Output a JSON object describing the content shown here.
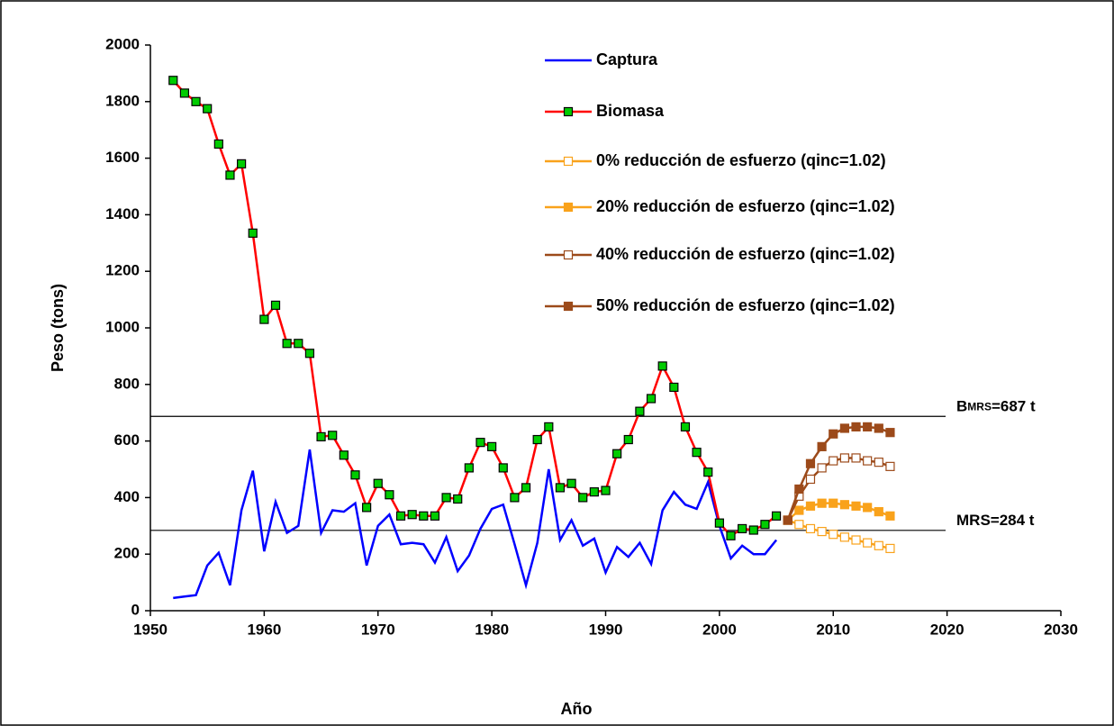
{
  "chart_data": {
    "type": "line",
    "xlabel": "Año",
    "ylabel": "Peso (tons)",
    "xlim": [
      1950,
      2030
    ],
    "xticks": [
      1950,
      1960,
      1970,
      1980,
      1990,
      2000,
      2010,
      2020,
      2030
    ],
    "ylim": [
      0,
      2000
    ],
    "yticks": [
      0,
      200,
      400,
      600,
      800,
      1000,
      1200,
      1400,
      1600,
      1800,
      2000
    ],
    "grid": false,
    "legend": "top-right",
    "series": [
      {
        "name": "Captura",
        "color": "#0000ff",
        "marker": "none",
        "marker_fill": "none",
        "x": [
          1952,
          1953,
          1954,
          1955,
          1956,
          1957,
          1958,
          1959,
          1960,
          1961,
          1962,
          1963,
          1964,
          1965,
          1966,
          1967,
          1968,
          1969,
          1970,
          1971,
          1972,
          1973,
          1974,
          1975,
          1976,
          1977,
          1978,
          1979,
          1980,
          1981,
          1982,
          1983,
          1984,
          1985,
          1986,
          1987,
          1988,
          1989,
          1990,
          1991,
          1992,
          1993,
          1994,
          1995,
          1996,
          1997,
          1998,
          1999,
          2000,
          2001,
          2002,
          2003,
          2004,
          2005
        ],
        "values": [
          45,
          50,
          55,
          160,
          205,
          90,
          355,
          495,
          210,
          385,
          275,
          300,
          570,
          275,
          355,
          350,
          380,
          160,
          300,
          340,
          235,
          240,
          235,
          170,
          260,
          140,
          195,
          290,
          360,
          375,
          235,
          90,
          240,
          500,
          250,
          320,
          230,
          255,
          135,
          225,
          190,
          240,
          165,
          355,
          420,
          375,
          360,
          455,
          300,
          185,
          230,
          200,
          200,
          250
        ]
      },
      {
        "name": "Biomasa",
        "color": "#ff0000",
        "marker": "square",
        "marker_fill": "#00cc00",
        "x": [
          1952,
          1953,
          1954,
          1955,
          1956,
          1957,
          1958,
          1959,
          1960,
          1961,
          1962,
          1963,
          1964,
          1965,
          1966,
          1967,
          1968,
          1969,
          1970,
          1971,
          1972,
          1973,
          1974,
          1975,
          1976,
          1977,
          1978,
          1979,
          1980,
          1981,
          1982,
          1983,
          1984,
          1985,
          1986,
          1987,
          1988,
          1989,
          1990,
          1991,
          1992,
          1993,
          1994,
          1995,
          1996,
          1997,
          1998,
          1999,
          2000,
          2001,
          2002,
          2003,
          2004,
          2005
        ],
        "values": [
          1875,
          1830,
          1800,
          1775,
          1650,
          1540,
          1580,
          1335,
          1030,
          1080,
          945,
          945,
          910,
          615,
          620,
          550,
          480,
          365,
          450,
          410,
          335,
          340,
          335,
          335,
          400,
          395,
          505,
          595,
          580,
          505,
          400,
          435,
          605,
          650,
          435,
          450,
          400,
          420,
          425,
          555,
          605,
          705,
          750,
          865,
          790,
          650,
          560,
          490,
          310,
          265,
          290,
          285,
          305,
          335
        ]
      },
      {
        "name": "0% reducción de esfuerzo (qinc=1.02)",
        "color": "#f9a21b",
        "marker": "square",
        "marker_fill": "#ffffff",
        "x": [
          2006,
          2007,
          2008,
          2009,
          2010,
          2011,
          2012,
          2013,
          2014,
          2015
        ],
        "values": [
          320,
          305,
          290,
          280,
          270,
          260,
          250,
          240,
          230,
          220
        ]
      },
      {
        "name": "20% reducción de esfuerzo (qinc=1.02)",
        "color": "#f9a21b",
        "marker": "square",
        "marker_fill": "#f9a21b",
        "x": [
          2006,
          2007,
          2008,
          2009,
          2010,
          2011,
          2012,
          2013,
          2014,
          2015
        ],
        "values": [
          320,
          355,
          370,
          380,
          380,
          375,
          370,
          365,
          350,
          335
        ]
      },
      {
        "name": "40% reducción de esfuerzo (qinc=1.02)",
        "color": "#9c4a1a",
        "marker": "square",
        "marker_fill": "#ffffff",
        "x": [
          2006,
          2007,
          2008,
          2009,
          2010,
          2011,
          2012,
          2013,
          2014,
          2015
        ],
        "values": [
          320,
          405,
          465,
          505,
          530,
          540,
          540,
          530,
          525,
          510
        ]
      },
      {
        "name": "50% reducción de esfuerzo (qinc=1.02)",
        "color": "#9c4a1a",
        "marker": "square",
        "marker_fill": "#9c4a1a",
        "x": [
          2006,
          2007,
          2008,
          2009,
          2010,
          2011,
          2012,
          2013,
          2014,
          2015
        ],
        "values": [
          320,
          430,
          520,
          580,
          625,
          645,
          650,
          650,
          645,
          630
        ]
      }
    ],
    "annotations": [
      {
        "value": 687,
        "label": [
          "B",
          "MRS",
          "=687 t"
        ]
      },
      {
        "value": 284,
        "label": [
          "MRS=284 t"
        ]
      }
    ]
  }
}
